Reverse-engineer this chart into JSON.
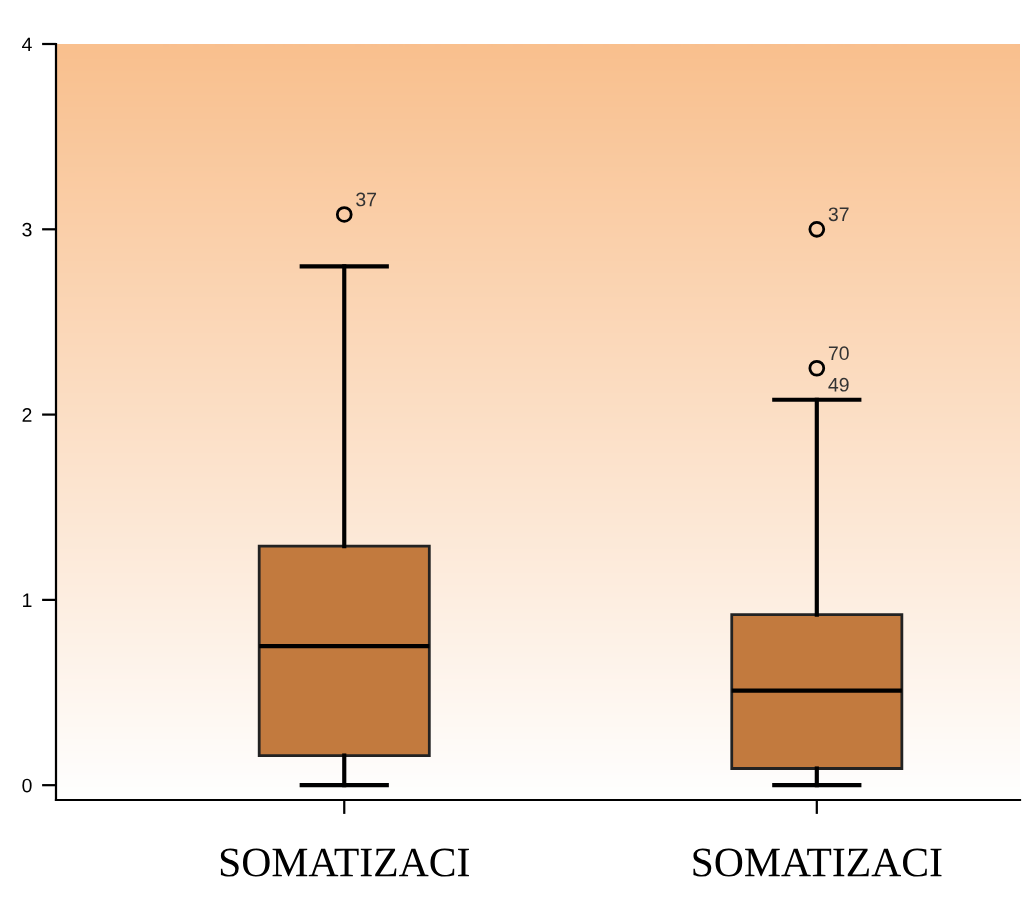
{
  "chart_data": {
    "type": "box",
    "categories": [
      "SOMATIZACI",
      "SOMATIZACI"
    ],
    "boxes": [
      {
        "low": 0.0,
        "q1": 0.16,
        "median": 0.75,
        "q3": 1.29,
        "high": 2.8,
        "outliers": [
          3.08
        ]
      },
      {
        "low": 0.0,
        "q1": 0.09,
        "median": 0.51,
        "q3": 0.92,
        "high": 2.08,
        "outliers": [
          3.0,
          2.25
        ]
      }
    ],
    "color": "#c27a3e",
    "ylim": [
      -0.08,
      4.0
    ],
    "yticks": [
      0,
      1,
      2,
      3,
      4
    ],
    "grid": false,
    "legend": false,
    "marker": "circle",
    "annotations": [
      "37",
      "37",
      "70",
      "49"
    ]
  }
}
